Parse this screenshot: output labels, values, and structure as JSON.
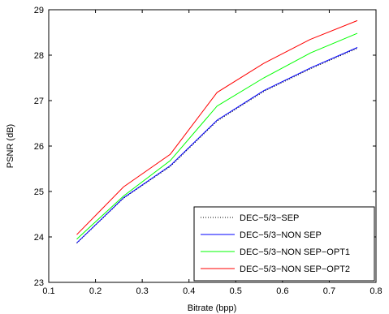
{
  "chart_data": {
    "type": "line",
    "xlabel": "Bitrate (bpp)",
    "ylabel": "PSNR (dB)",
    "xlim": [
      0.1,
      0.8
    ],
    "ylim": [
      23,
      29
    ],
    "xticks": [
      "0.1",
      "0.2",
      "0.3",
      "0.4",
      "0.5",
      "0.6",
      "0.7",
      "0.8"
    ],
    "yticks": [
      "23",
      "24",
      "25",
      "26",
      "27",
      "28",
      "29"
    ],
    "grid": false,
    "legend_position": "bottom-right",
    "x": [
      0.16,
      0.26,
      0.36,
      0.46,
      0.56,
      0.66,
      0.76
    ],
    "series": [
      {
        "name": "DEC−5/3−SEP",
        "color": "#000000",
        "style": "dotted",
        "values": [
          23.86,
          24.85,
          25.55,
          26.55,
          27.2,
          27.7,
          28.15
        ]
      },
      {
        "name": "DEC−5/3−NON SEP",
        "color": "#0000ff",
        "style": "solid",
        "values": [
          23.87,
          24.86,
          25.57,
          26.57,
          27.22,
          27.72,
          28.17
        ]
      },
      {
        "name": "DEC−5/3−NON SEP−OPT1",
        "color": "#00ff00",
        "style": "solid",
        "values": [
          23.95,
          24.9,
          25.68,
          26.88,
          27.5,
          28.05,
          28.48
        ]
      },
      {
        "name": "DEC−5/3−NON SEP−OPT2",
        "color": "#ff0000",
        "style": "solid",
        "values": [
          24.05,
          25.1,
          25.82,
          27.18,
          27.82,
          28.35,
          28.76
        ]
      }
    ]
  }
}
